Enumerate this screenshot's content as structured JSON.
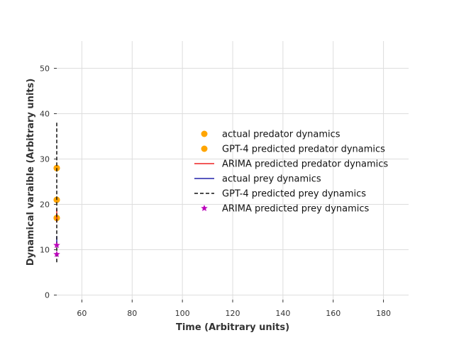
{
  "chart_data": {
    "type": "line",
    "title": "",
    "xlabel": "Time (Arbitrary units)",
    "ylabel": "Dynamical varaible (Arbitrary units)",
    "xlim": [
      50,
      190
    ],
    "ylim": [
      -1,
      56
    ],
    "x_ticks": [
      60,
      80,
      100,
      120,
      140,
      160,
      180
    ],
    "y_ticks": [
      0,
      10,
      20,
      30,
      40,
      50
    ],
    "grid": true,
    "legend_position": "right",
    "series": [
      {
        "name": "actual predator dynamics",
        "style": "marker-circle",
        "color": "#FFA500",
        "points": [
          [
            50,
            28
          ],
          [
            50,
            21
          ],
          [
            50,
            17
          ]
        ]
      },
      {
        "name": "GPT-4 predicted predator dynamics",
        "style": "marker-circle",
        "color": "#FFA500",
        "points": [
          [
            50,
            28
          ],
          [
            50,
            21
          ],
          [
            50,
            17
          ]
        ]
      },
      {
        "name": "ARIMA predicted predator dynamics",
        "style": "line-solid",
        "color": "#EE2222",
        "points": [
          [
            50,
            19
          ],
          [
            50,
            16
          ]
        ]
      },
      {
        "name": "actual prey dynamics",
        "style": "line-solid",
        "color": "#2222AA",
        "points": [
          [
            50,
            13
          ],
          [
            50,
            11
          ]
        ]
      },
      {
        "name": "GPT-4 predicted prey dynamics",
        "style": "line-dashed",
        "color": "#111111",
        "points": [
          [
            50,
            38
          ],
          [
            50,
            17
          ],
          [
            50,
            15
          ],
          [
            50,
            9
          ],
          [
            50,
            7
          ]
        ]
      },
      {
        "name": "ARIMA predicted prey dynamics",
        "style": "marker-star",
        "color": "#BB00BB",
        "points": [
          [
            50,
            11
          ],
          [
            50,
            9
          ]
        ]
      }
    ]
  }
}
